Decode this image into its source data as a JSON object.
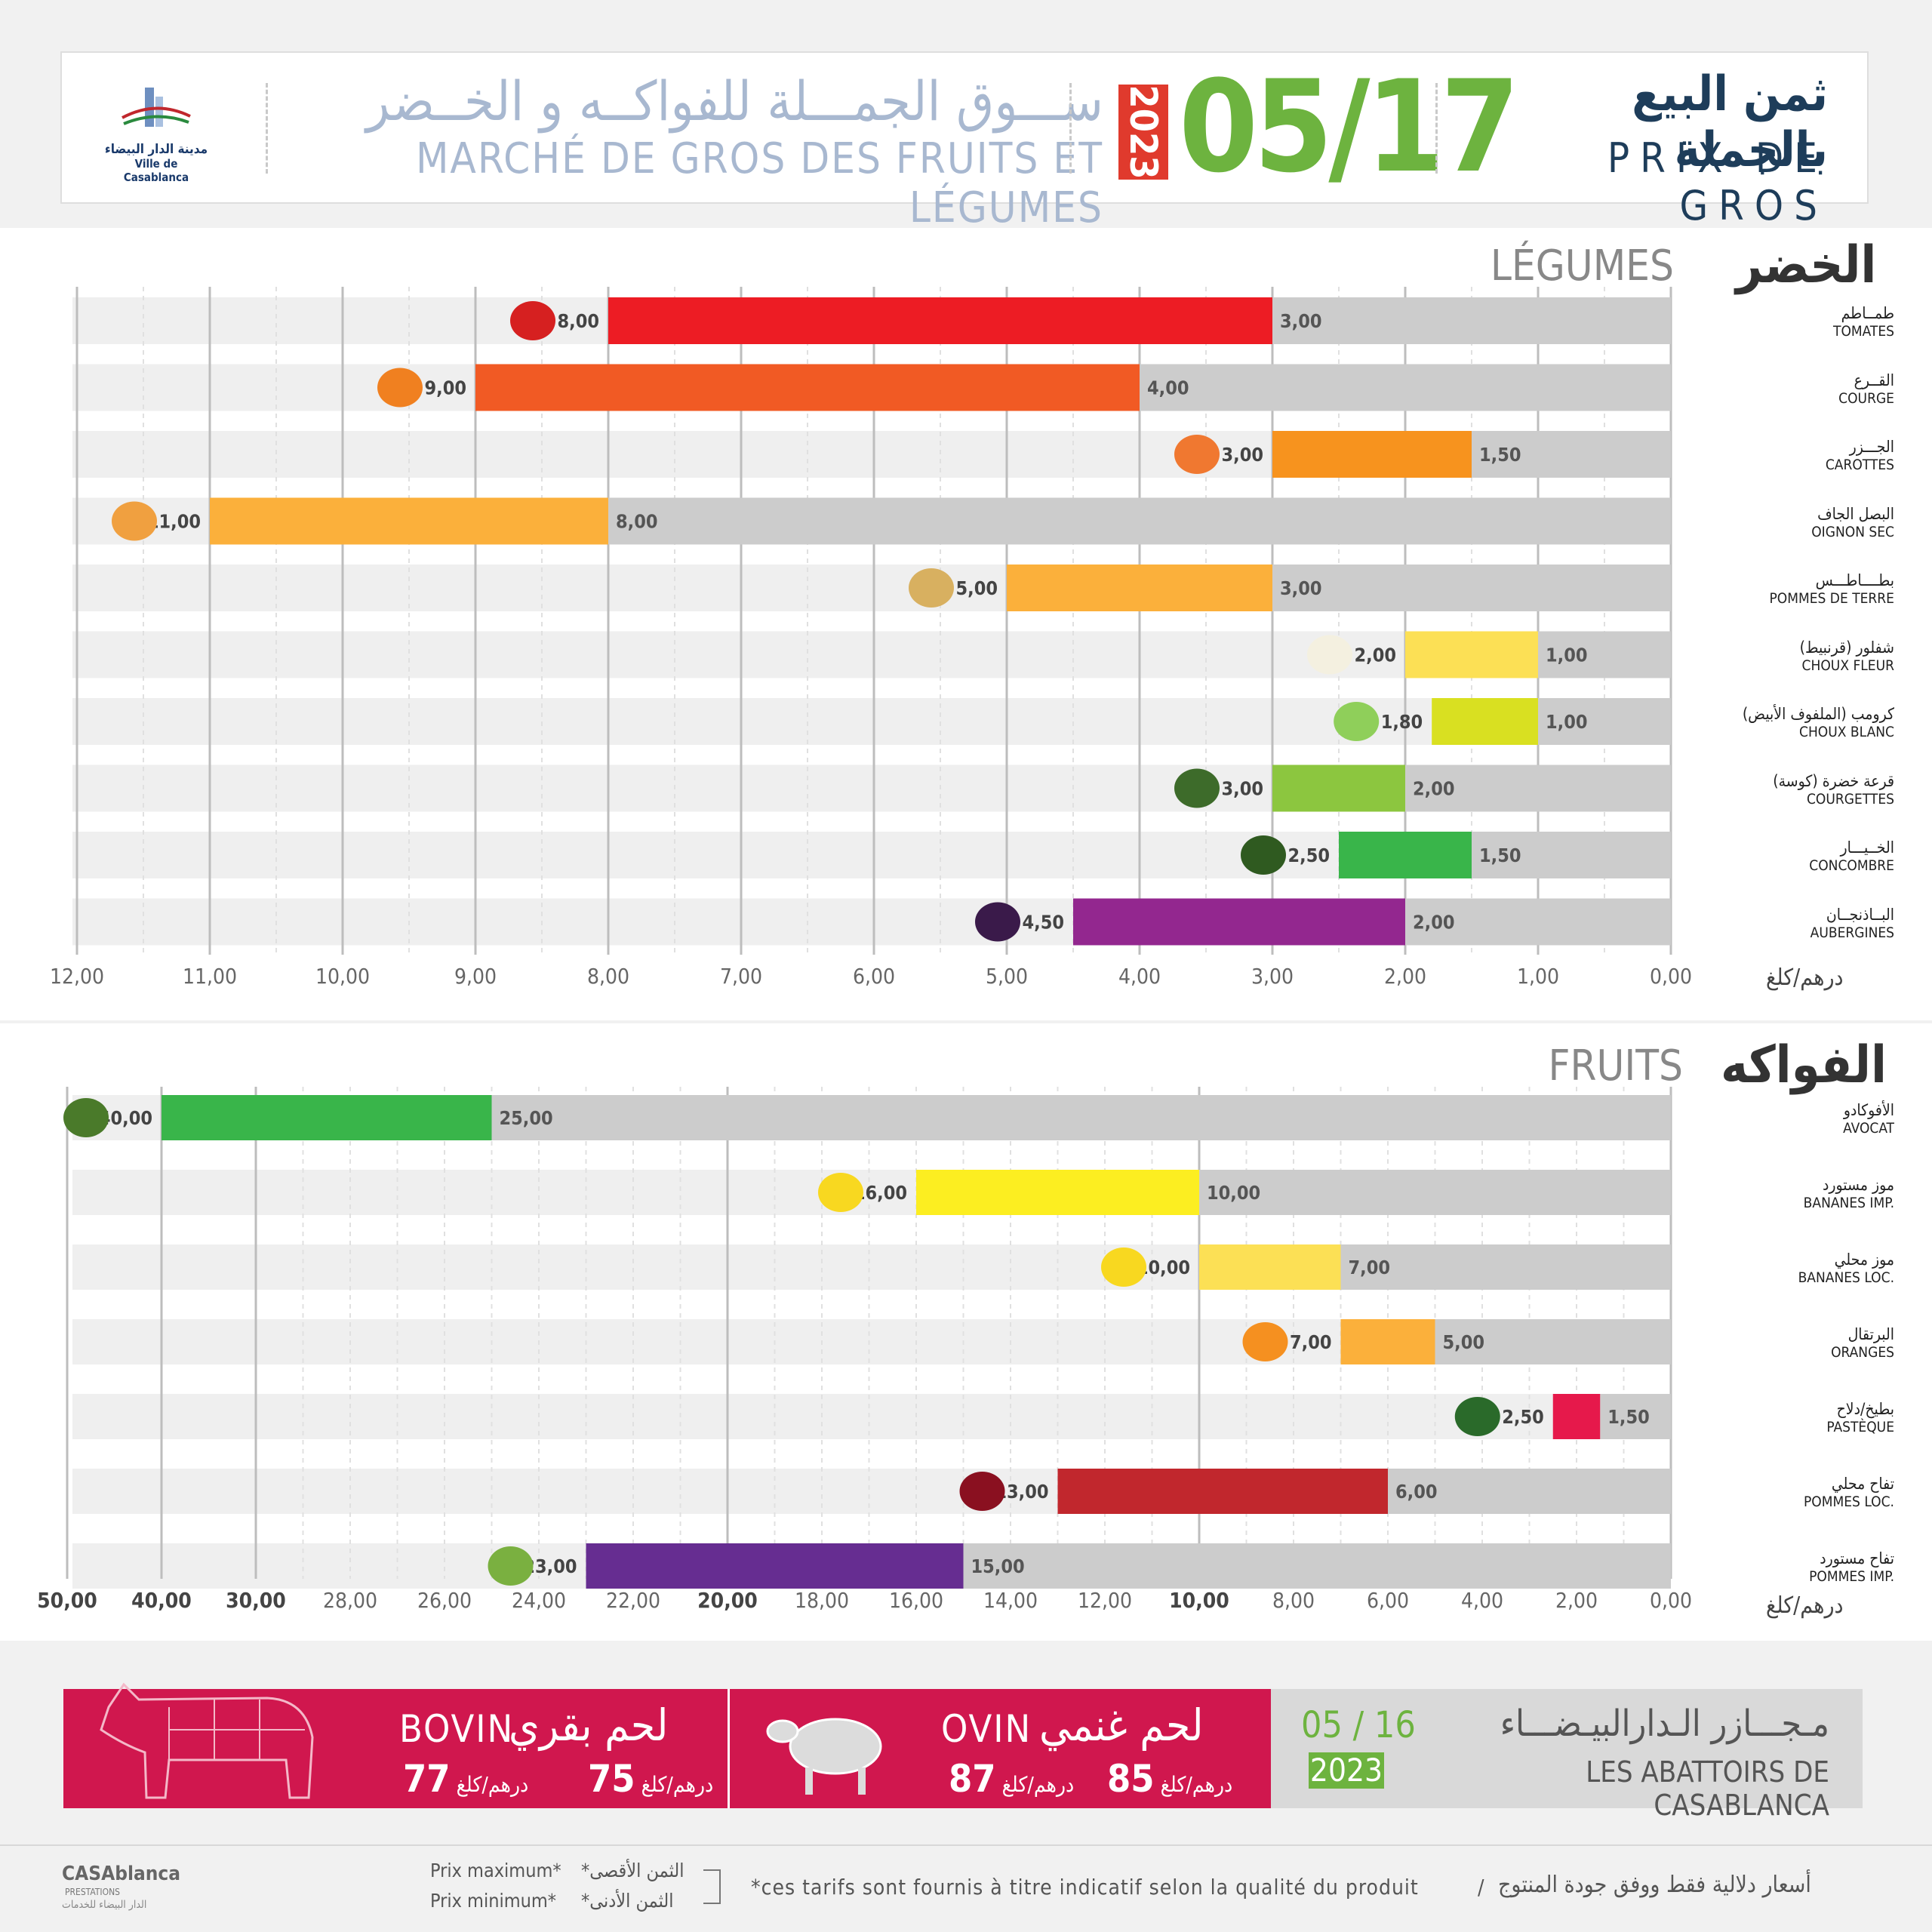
{
  "header": {
    "logo_ar": "مدينة الدار البيضاء",
    "logo_fr": "Ville de Casablanca",
    "market_ar": "ســـوق الجمـــلة للفواكــه و الخــضر",
    "market_fr": "MARCHÉ DE GROS DES FRUITS ET LÉGUMES",
    "year": "2023",
    "date": "05/17",
    "title_ar": "ثمن البيع بالجملة",
    "title_fr": "PRIX DE GROS"
  },
  "vegetables": {
    "title_ar": "الخضر",
    "title_fr": "LÉGUMES",
    "unit": "درهم/كلغ"
  },
  "fruits": {
    "title_ar": "الفواكه",
    "title_fr": "FRUITS",
    "unit": "درهم/كلغ"
  },
  "chart_data": [
    {
      "type": "bar",
      "orientation": "horizontal-reversed",
      "xlim": [
        0,
        12
      ],
      "ticks": [
        "0,00",
        "1,00",
        "2,00",
        "3,00",
        "4,00",
        "5,00",
        "6,00",
        "7,00",
        "8,00",
        "9,00",
        "10,00",
        "11,00",
        "12,00"
      ],
      "items": [
        {
          "ar": "طمــاطم",
          "fr": "TOMATES",
          "min": 3.0,
          "max": 8.0,
          "min_label": "3,00",
          "max_label": "8,00",
          "color": "#ed1c24",
          "icon": "tomato-icon"
        },
        {
          "ar": "القــرع",
          "fr": "COURGE",
          "min": 4.0,
          "max": 9.0,
          "min_label": "4,00",
          "max_label": "9,00",
          "color": "#f15a24",
          "icon": "pumpkin-icon"
        },
        {
          "ar": "الجـــزر",
          "fr": "CAROTTES",
          "min": 1.5,
          "max": 3.0,
          "min_label": "1,50",
          "max_label": "3,00",
          "color": "#f7931e",
          "icon": "carrot-icon"
        },
        {
          "ar": "البصل الجاف",
          "fr": "OIGNON SEC",
          "min": 8.0,
          "max": 11.0,
          "min_label": "8,00",
          "max_label": "11,00",
          "color": "#fbb03b",
          "icon": "onion-icon"
        },
        {
          "ar": "بطــــاطـــس",
          "fr": "POMMES DE TERRE",
          "min": 3.0,
          "max": 5.0,
          "min_label": "3,00",
          "max_label": "5,00",
          "color": "#fbb03b",
          "icon": "potato-icon"
        },
        {
          "ar": "شفلور (قرنبيط)",
          "fr": "CHOUX FLEUR",
          "min": 1.0,
          "max": 2.0,
          "min_label": "1,00",
          "max_label": "2,00",
          "color": "#fce055",
          "icon": "cauliflower-icon"
        },
        {
          "ar": "كرومب (الملفوف الأبيض)",
          "fr": "CHOUX BLANC",
          "min": 1.0,
          "max": 1.8,
          "min_label": "1,00",
          "max_label": "1,80",
          "color": "#d9e021",
          "icon": "cabbage-icon"
        },
        {
          "ar": "قرعة خضرة (كوسة)",
          "fr": "COURGETTES",
          "min": 2.0,
          "max": 3.0,
          "min_label": "2,00",
          "max_label": "3,00",
          "color": "#8cc63f",
          "icon": "zucchini-icon"
        },
        {
          "ar": "الخــيـــار",
          "fr": "CONCOMBRE",
          "min": 1.5,
          "max": 2.5,
          "min_label": "1,50",
          "max_label": "2,50",
          "color": "#39b54a",
          "icon": "cucumber-icon"
        },
        {
          "ar": "البــاذنجــان",
          "fr": "AUBERGINES",
          "min": 2.0,
          "max": 4.5,
          "min_label": "2,00",
          "max_label": "4,50",
          "color": "#93278f",
          "icon": "eggplant-icon"
        }
      ]
    },
    {
      "type": "bar",
      "orientation": "horizontal-reversed",
      "xlim": [
        0,
        50
      ],
      "ticks": [
        "0,00",
        "2,00",
        "4,00",
        "6,00",
        "8,00",
        "10,00",
        "12,00",
        "14,00",
        "16,00",
        "18,00",
        "20,00",
        "22,00",
        "24,00",
        "26,00",
        "28,00",
        "30,00",
        "40,00",
        "50,00"
      ],
      "items": [
        {
          "ar": "الأفوكادو",
          "fr": "AVOCAT",
          "min": 25.0,
          "max": 40.0,
          "min_label": "25,00",
          "max_label": "40,00",
          "color": "#39b54a",
          "icon": "avocado-icon"
        },
        {
          "ar": "موز مستورد",
          "fr": "BANANES IMP.",
          "min": 10.0,
          "max": 16.0,
          "min_label": "10,00",
          "max_label": "16,00",
          "color": "#fcee21",
          "icon": "banana-bunch-icon"
        },
        {
          "ar": "موز محلي",
          "fr": "BANANES LOC.",
          "min": 7.0,
          "max": 10.0,
          "min_label": "7,00",
          "max_label": "10,00",
          "color": "#fce055",
          "icon": "banana-icon"
        },
        {
          "ar": "البرتقال",
          "fr": "ORANGES",
          "min": 5.0,
          "max": 7.0,
          "min_label": "5,00",
          "max_label": "7,00",
          "color": "#fbb03b",
          "icon": "orange-icon"
        },
        {
          "ar": "بطيخ/دلاح",
          "fr": "PASTÈQUE",
          "min": 1.5,
          "max": 2.5,
          "min_label": "1,50",
          "max_label": "2,50",
          "color": "#e6194b",
          "icon": "watermelon-icon"
        },
        {
          "ar": "تفاح محلي",
          "fr": "POMMES LOC.",
          "min": 6.0,
          "max": 13.0,
          "min_label": "6,00",
          "max_label": "13,00",
          "color": "#c1272d",
          "icon": "apple-icon"
        },
        {
          "ar": "تفاح مستورد",
          "fr": "POMMES IMP.",
          "min": 15.0,
          "max": 23.0,
          "min_label": "15,00",
          "max_label": "23,00",
          "color": "#662d91",
          "icon": "apples-icon"
        }
      ]
    }
  ],
  "meat": {
    "bovin_ar": "لحم بقري",
    "bovin_fr": "BOVIN",
    "bovin_min": "75",
    "bovin_max": "77",
    "ovin_ar": "لحم غنمي",
    "ovin_fr": "OVIN",
    "ovin_min": "85",
    "ovin_max": "87",
    "unit": "درهم/كلغ",
    "abattoirs_ar": "مـجـــازر الـدارالبيـضـــاء",
    "abattoirs_fr": "LES ABATTOIRS DE CASABLANCA",
    "date": "05 / 16",
    "year": "2023"
  },
  "footer": {
    "brand": "CASAblanca",
    "brand_sub": "PRESTATIONS",
    "brand_ar": "الدار البيضاء للخدمات",
    "legend_max_fr": "Prix maximum*",
    "legend_min_fr": "Prix minimum*",
    "legend_max_ar": "*الثمن الأقصى",
    "legend_min_ar": "*الثمن الأدنى",
    "note": "*ces tarifs sont fournis à titre indicatif selon la qualité du produit",
    "note_ar": "أسعار دلالية فقط ووفق جودة المنتوج"
  }
}
